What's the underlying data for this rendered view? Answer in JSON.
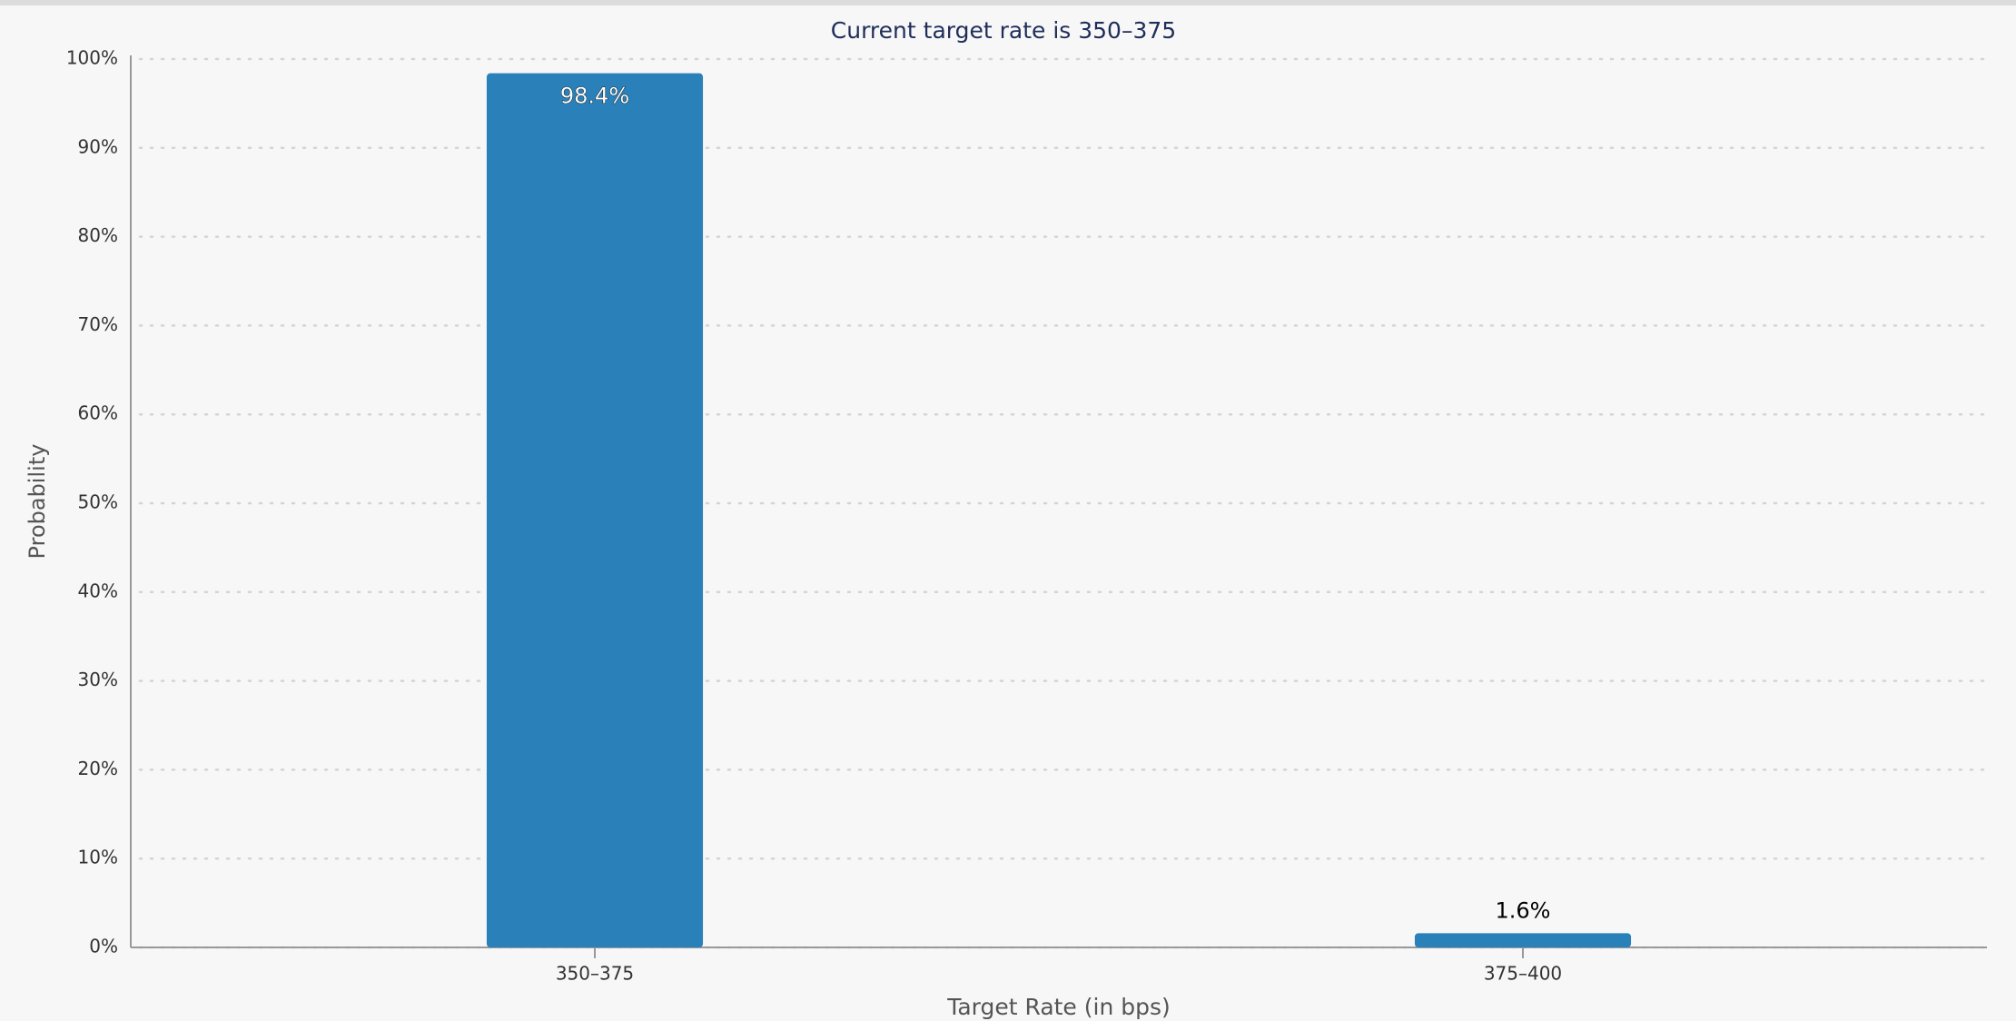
{
  "chart_data": {
    "type": "bar",
    "title": "Current target rate is 350–375",
    "x_label": "Target Rate (in bps)",
    "y_label": "Probability",
    "categories": [
      "350–375",
      "375–400"
    ],
    "values": [
      98.4,
      1.6
    ],
    "value_labels": [
      "98.4%",
      "1.6%"
    ],
    "color": "#2a80b9",
    "ylim": [
      0,
      100
    ],
    "yticks": [
      {
        "value": 0,
        "label": "0%"
      },
      {
        "value": 10,
        "label": "10%"
      },
      {
        "value": 20,
        "label": "20%"
      },
      {
        "value": 30,
        "label": "30%"
      },
      {
        "value": 40,
        "label": "40%"
      },
      {
        "value": 50,
        "label": "50%"
      },
      {
        "value": 60,
        "label": "60%"
      },
      {
        "value": 70,
        "label": "70%"
      },
      {
        "value": 80,
        "label": "80%"
      },
      {
        "value": 90,
        "label": "90%"
      },
      {
        "value": 100,
        "label": "100%"
      }
    ],
    "grid": true
  }
}
